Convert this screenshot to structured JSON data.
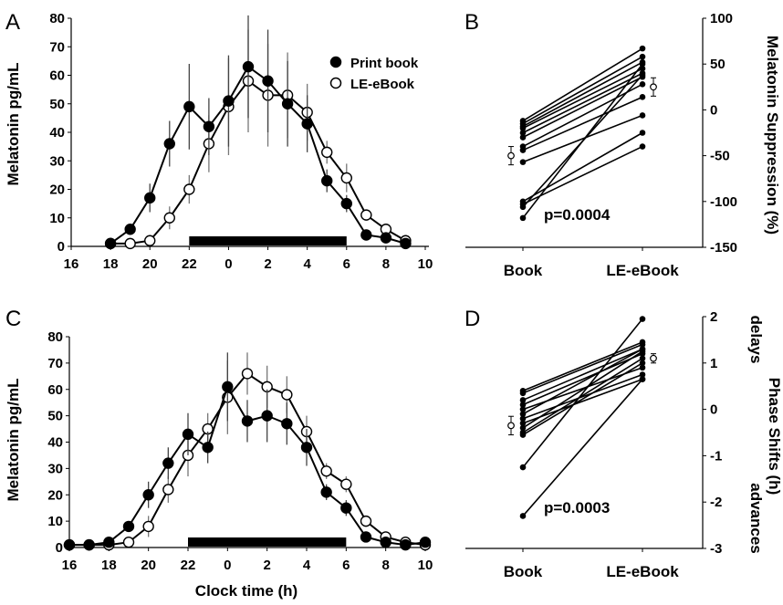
{
  "figure": {
    "panel_labels": [
      "A",
      "B",
      "C",
      "D"
    ],
    "legend": [
      {
        "label": "Print book",
        "marker": "filled-circle",
        "color": "#000000"
      },
      {
        "label": "LE-eBook",
        "marker": "open-circle",
        "color": "#000000"
      }
    ],
    "x_label": "Clock time (h)",
    "left_y_label": "Melatonin pg/mL",
    "b_y_label": "Melatonin Suppression (%)",
    "d_y_label": "Phase Shifts (h)",
    "d_top_note": "delays",
    "d_bottom_note": "advances",
    "b_pvalue": "p=0.0004",
    "d_pvalue": "p=0.0003"
  },
  "chart_data": [
    {
      "panel": "A",
      "type": "line",
      "xlabel": "",
      "ylabel": "Melatonin pg/mL",
      "x_ticks": [
        "16",
        "18",
        "20",
        "22",
        "0",
        "2",
        "4",
        "6",
        "8",
        "10"
      ],
      "y_ticks": [
        "0",
        "10",
        "20",
        "30",
        "40",
        "50",
        "60",
        "70",
        "80"
      ],
      "ylim": [
        0,
        80
      ],
      "x_hours_range": [
        16,
        34
      ],
      "dark_period_bar": [
        22,
        30
      ],
      "series": [
        {
          "name": "Print book",
          "marker": "filled",
          "x": [
            18,
            19,
            20,
            21,
            22,
            23,
            24,
            25,
            26,
            27,
            28,
            29,
            30,
            31,
            32,
            33
          ],
          "y": [
            1,
            6,
            17,
            36,
            49,
            42,
            51,
            63,
            58,
            50,
            43,
            23,
            15,
            4,
            3,
            1
          ],
          "err": [
            0,
            0,
            5,
            8,
            15,
            10,
            16,
            18,
            18,
            15,
            10,
            4,
            3,
            0,
            0,
            0
          ]
        },
        {
          "name": "LE-eBook",
          "marker": "open",
          "x": [
            18,
            19,
            20,
            21,
            22,
            23,
            24,
            25,
            26,
            27,
            28,
            29,
            30,
            31,
            32,
            33
          ],
          "y": [
            1,
            1,
            2,
            10,
            20,
            36,
            49,
            58,
            53,
            53,
            47,
            33,
            24,
            11,
            6,
            2
          ],
          "err": [
            0,
            0,
            0,
            4,
            5,
            10,
            17,
            18,
            18,
            15,
            10,
            4,
            5,
            0,
            0,
            0
          ]
        }
      ]
    },
    {
      "panel": "B",
      "type": "line",
      "xlabel": "",
      "ylabel": "Melatonin Suppression (%)",
      "categories": [
        "Book",
        "LE-eBook"
      ],
      "y_ticks": [
        "-150",
        "-100",
        "-50",
        "0",
        "50",
        "100"
      ],
      "ylim": [
        -150,
        100
      ],
      "pvalue": "p=0.0004",
      "pairs": [
        [
          -12,
          67
        ],
        [
          -15,
          58
        ],
        [
          -18,
          52
        ],
        [
          -20,
          45
        ],
        [
          -25,
          40
        ],
        [
          -30,
          36
        ],
        [
          -40,
          28
        ],
        [
          -44,
          14
        ],
        [
          -57,
          -6
        ],
        [
          -100,
          -25
        ],
        [
          -103,
          -40
        ],
        [
          -106,
          38
        ],
        [
          -118,
          50
        ]
      ],
      "means": {
        "Book": {
          "mean": -50,
          "err": 10
        },
        "LE-eBook": {
          "mean": 25,
          "err": 10
        }
      }
    },
    {
      "panel": "C",
      "type": "line",
      "xlabel": "Clock time (h)",
      "ylabel": "Melatonin pg/mL",
      "x_ticks": [
        "16",
        "18",
        "20",
        "22",
        "0",
        "2",
        "4",
        "6",
        "8",
        "10"
      ],
      "y_ticks": [
        "0",
        "10",
        "20",
        "30",
        "40",
        "50",
        "60",
        "70",
        "80"
      ],
      "ylim": [
        0,
        80
      ],
      "x_hours_range": [
        16,
        34
      ],
      "dark_period_bar": [
        22,
        30
      ],
      "series": [
        {
          "name": "Print book",
          "marker": "filled",
          "x": [
            16,
            17,
            18,
            19,
            20,
            21,
            22,
            23,
            24,
            25,
            26,
            27,
            28,
            29,
            30,
            31,
            32,
            33,
            34
          ],
          "y": [
            1,
            1,
            2,
            8,
            20,
            32,
            43,
            38,
            61,
            48,
            50,
            47,
            38,
            21,
            15,
            4,
            2,
            1,
            2
          ],
          "err": [
            0,
            0,
            0,
            0,
            5,
            6,
            8,
            6,
            13,
            8,
            10,
            8,
            7,
            3,
            3,
            0,
            0,
            0,
            0
          ]
        },
        {
          "name": "LE-eBook",
          "marker": "open",
          "x": [
            16,
            17,
            18,
            19,
            20,
            21,
            22,
            23,
            24,
            25,
            26,
            27,
            28,
            29,
            30,
            31,
            32,
            33,
            34
          ],
          "y": [
            1,
            1,
            1,
            2,
            8,
            22,
            35,
            45,
            57,
            66,
            61,
            58,
            44,
            29,
            24,
            10,
            4,
            2,
            1
          ],
          "err": [
            0,
            0,
            0,
            0,
            4,
            5,
            8,
            6,
            14,
            8,
            8,
            7,
            6,
            3,
            3,
            0,
            0,
            0,
            0
          ]
        }
      ]
    },
    {
      "panel": "D",
      "type": "line",
      "xlabel": "",
      "ylabel": "Phase Shifts (h)",
      "categories": [
        "Book",
        "LE-eBook"
      ],
      "y_ticks": [
        "-3",
        "-2",
        "-1",
        "0",
        "1",
        "2"
      ],
      "ylim": [
        -3,
        2
      ],
      "pvalue": "p=0.0003",
      "pairs": [
        [
          0.4,
          1.45
        ],
        [
          0.35,
          1.4
        ],
        [
          0.2,
          1.3
        ],
        [
          0.1,
          1.2
        ],
        [
          0.0,
          0.9
        ],
        [
          -0.1,
          1.3
        ],
        [
          -0.2,
          0.75
        ],
        [
          -0.3,
          0.65
        ],
        [
          -0.4,
          1.25
        ],
        [
          -0.5,
          1.1
        ],
        [
          -0.55,
          1.0
        ],
        [
          -1.25,
          1.95
        ],
        [
          -2.3,
          0.65
        ]
      ],
      "means": {
        "Book": {
          "mean": -0.35,
          "err": 0.2
        },
        "LE-eBook": {
          "mean": 1.1,
          "err": 0.1
        }
      }
    }
  ]
}
